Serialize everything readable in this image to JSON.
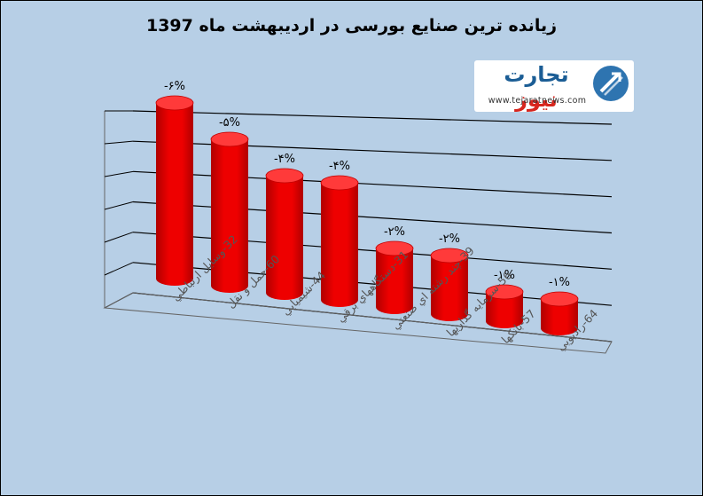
{
  "title": "زیانده ترین صنایع بورسی در اردیبهشت ماه 1397",
  "logo": {
    "word_main": "تجارت",
    "word_accent": "نیوز",
    "url": "www.tejaratnews.com"
  },
  "colors": {
    "background": "#b7cfe6",
    "bar": "#ee0000",
    "bar_top": "#ff3a3a",
    "bar_dark": "#b00000",
    "grid": "#000000"
  },
  "chart_data": {
    "type": "bar",
    "style": "3d-cylinder",
    "title": "زیانده ترین صنایع بورسی در اردیبهشت ماه 1397",
    "categories": [
      "32-وسایل ارتباطي",
      "60-حمل و نقل",
      "44-شیمیایي",
      "31-دستگاههاي برقي",
      "39-چند رشته اي صنعتي",
      "56-سرمایه گذاریها",
      "57-بانکها",
      "64-رادیویي"
    ],
    "values": [
      -6,
      -5,
      -4,
      -4,
      -2,
      -2,
      -1,
      -1
    ],
    "data_labels": [
      "-۶%",
      "-۵%",
      "-۴%",
      "-۴%",
      "-۲%",
      "-۲%",
      "-۱%",
      "-۱%"
    ],
    "grid": true,
    "legend": "none"
  }
}
